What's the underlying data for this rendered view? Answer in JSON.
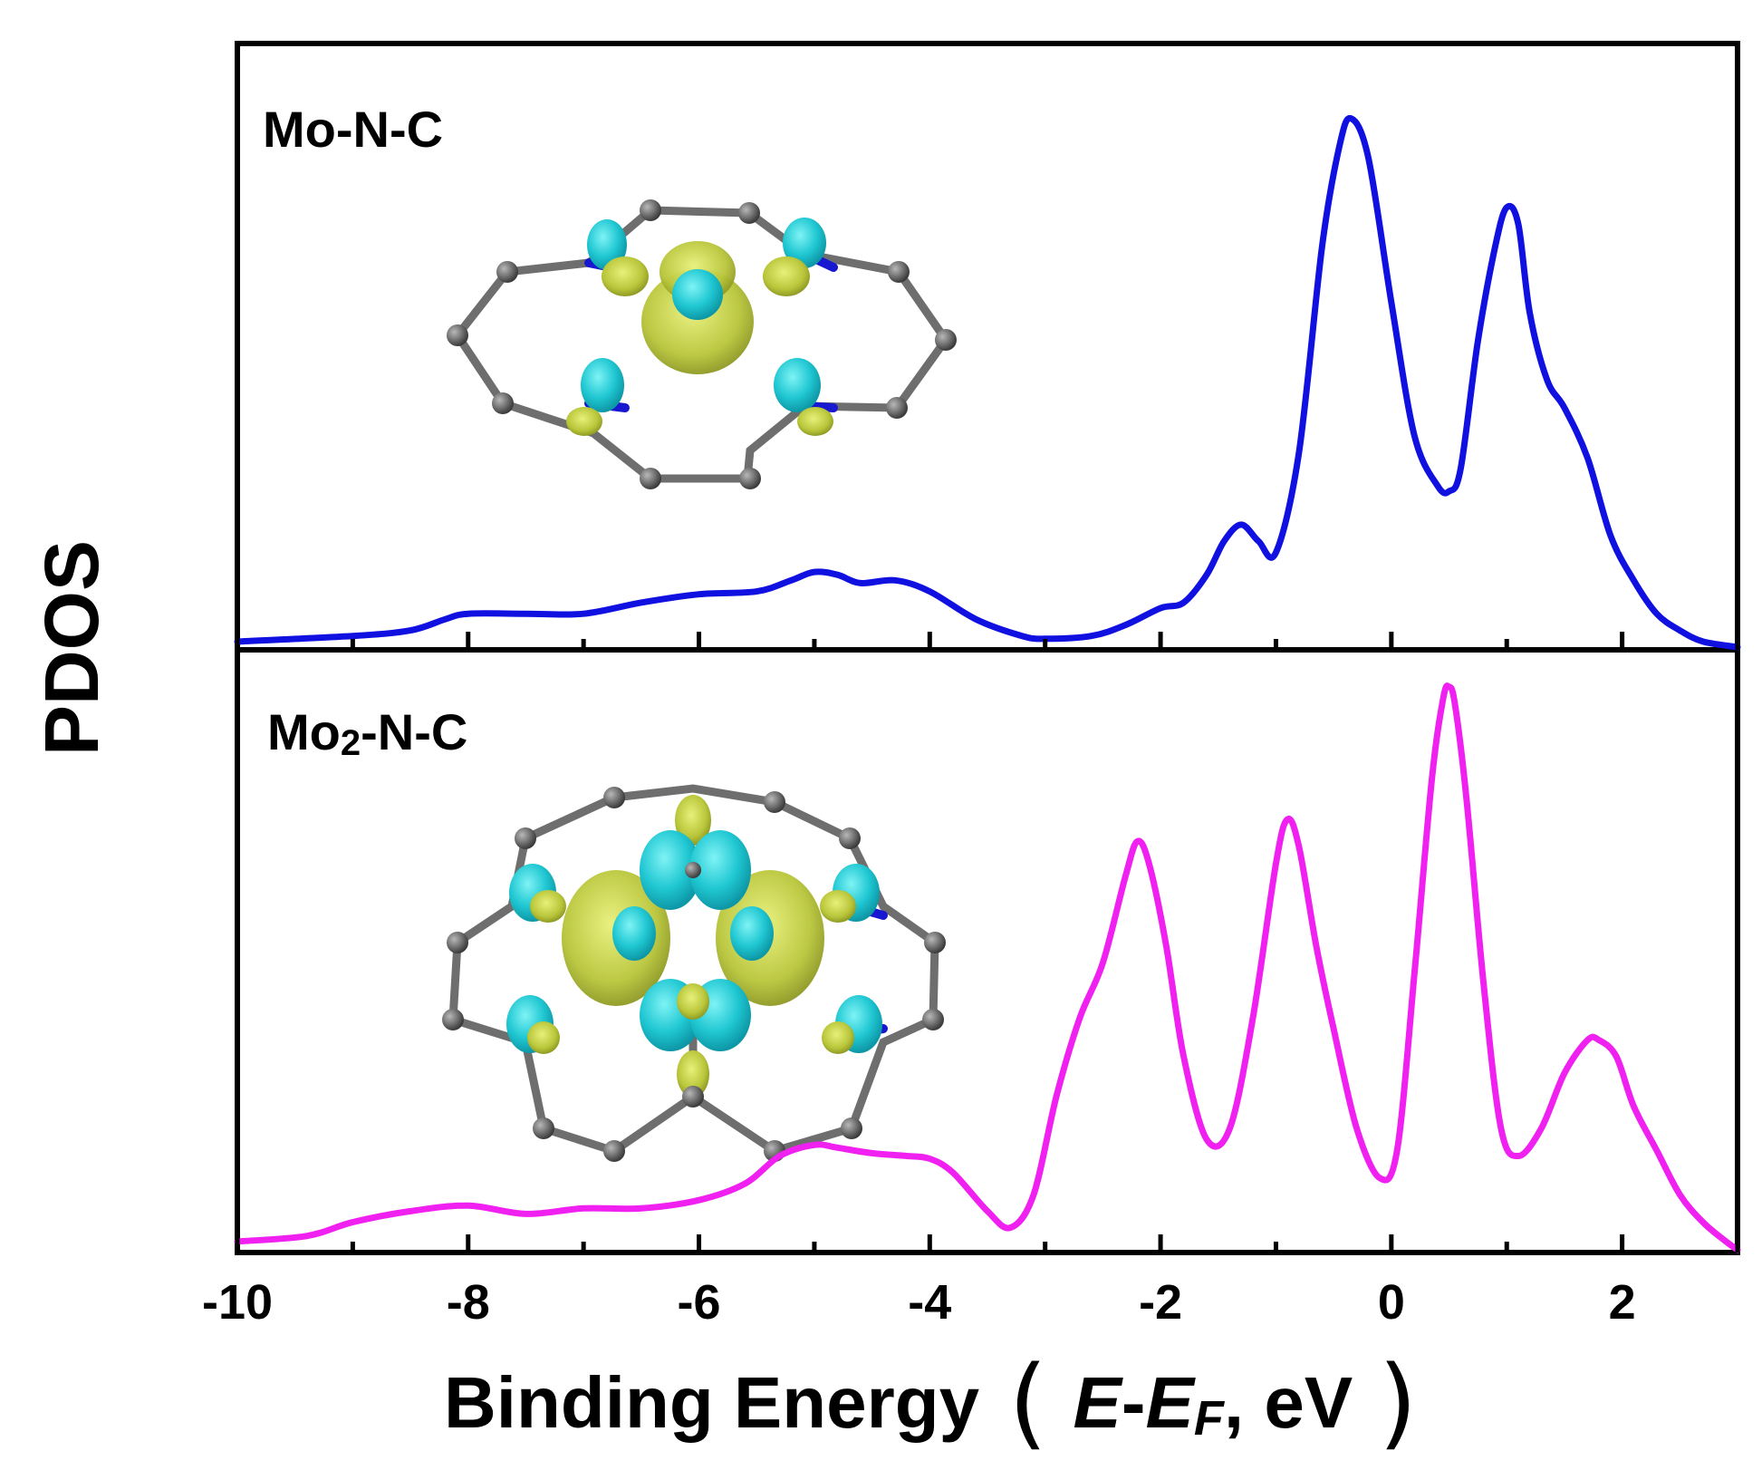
{
  "chart_data": {
    "type": "line",
    "xlabel": {
      "prefix": "Binding Energy",
      "open": "(",
      "e": "E",
      "dash": "-",
      "ef_e": "E",
      "ef_sub": "F",
      "unit": ", eV",
      "close": ")"
    },
    "ylabel": "PDOS",
    "xlim": [
      -10,
      3
    ],
    "xticks_major": [
      "-10",
      "-8",
      "-6",
      "-4",
      "-2",
      "0",
      "2"
    ],
    "grid": false,
    "legend": "none",
    "panels": [
      {
        "label_main": "Mo-N-C",
        "label_base": "Mo",
        "label_rest": "-N-C",
        "color": "#1010e0",
        "ylim": [
          0,
          1.0
        ],
        "series": [
          {
            "x": [
              -10,
              -9,
              -8.5,
              -8.2,
              -8,
              -7.5,
              -7,
              -6.5,
              -6,
              -5.5,
              -5.2,
              -5,
              -4.8,
              -4.6,
              -4.3,
              -4,
              -3.6,
              -3.2,
              -3,
              -2.6,
              -2.3,
              -2,
              -1.8,
              -1.6,
              -1.45,
              -1.3,
              -1.15,
              -1,
              -0.8,
              -0.6,
              -0.45,
              -0.35,
              -0.2,
              0,
              0.2,
              0.4,
              0.5,
              0.6,
              0.75,
              0.9,
              1.0,
              1.1,
              1.2,
              1.35,
              1.5,
              1.7,
              1.9,
              2.1,
              2.3,
              2.5,
              2.7,
              3.0
            ],
            "y": [
              0.01,
              0.02,
              0.03,
              0.05,
              0.06,
              0.06,
              0.06,
              0.08,
              0.095,
              0.1,
              0.12,
              0.135,
              0.13,
              0.115,
              0.12,
              0.1,
              0.05,
              0.02,
              0.015,
              0.02,
              0.04,
              0.07,
              0.08,
              0.13,
              0.19,
              0.22,
              0.19,
              0.17,
              0.35,
              0.72,
              0.9,
              0.95,
              0.88,
              0.62,
              0.38,
              0.29,
              0.28,
              0.32,
              0.55,
              0.72,
              0.79,
              0.76,
              0.6,
              0.48,
              0.43,
              0.34,
              0.2,
              0.12,
              0.06,
              0.03,
              0.01,
              0.0
            ]
          }
        ]
      },
      {
        "label_main": "Mo2-N-C",
        "label_base": "Mo",
        "label_sub": "2",
        "label_rest": "-N-C",
        "color": "#f020f0",
        "ylim": [
          0,
          1.0
        ],
        "series": [
          {
            "x": [
              -10,
              -9.4,
              -9,
              -8.5,
              -8,
              -7.5,
              -7,
              -6.5,
              -6,
              -5.6,
              -5.3,
              -5,
              -4.8,
              -4.5,
              -4.2,
              -4,
              -3.8,
              -3.5,
              -3.3,
              -3.1,
              -2.9,
              -2.7,
              -2.5,
              -2.3,
              -2.2,
              -2.1,
              -1.95,
              -1.8,
              -1.6,
              -1.4,
              -1.2,
              -1.0,
              -0.9,
              -0.8,
              -0.65,
              -0.5,
              -0.3,
              -0.1,
              0.05,
              0.2,
              0.35,
              0.45,
              0.5,
              0.55,
              0.65,
              0.8,
              0.95,
              1.1,
              1.3,
              1.5,
              1.7,
              1.8,
              1.95,
              2.1,
              2.3,
              2.5,
              2.7,
              2.9,
              3.0
            ],
            "y": [
              0.015,
              0.025,
              0.05,
              0.07,
              0.08,
              0.065,
              0.075,
              0.075,
              0.09,
              0.12,
              0.17,
              0.19,
              0.185,
              0.175,
              0.17,
              0.165,
              0.14,
              0.07,
              0.04,
              0.1,
              0.28,
              0.42,
              0.52,
              0.68,
              0.74,
              0.7,
              0.55,
              0.35,
              0.2,
              0.22,
              0.42,
              0.7,
              0.78,
              0.73,
              0.55,
              0.4,
              0.22,
              0.13,
              0.18,
              0.5,
              0.85,
              1.0,
              1.02,
              0.99,
              0.82,
              0.48,
              0.22,
              0.17,
              0.22,
              0.32,
              0.38,
              0.38,
              0.35,
              0.26,
              0.18,
              0.1,
              0.05,
              0.015,
              0.0
            ]
          }
        ]
      }
    ]
  }
}
